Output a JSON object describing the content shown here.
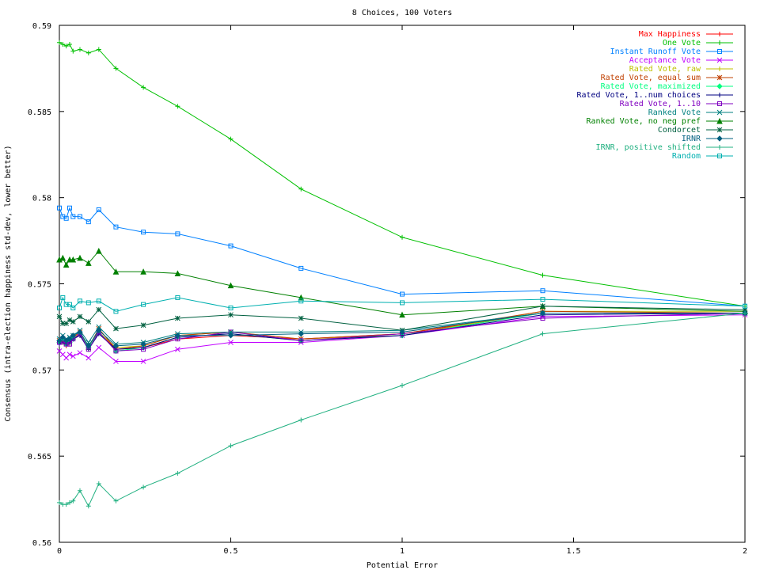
{
  "chart_data": {
    "type": "line",
    "title": "8 Choices, 100 Voters",
    "xlabel": "Potential Error",
    "ylabel": "Consensus (intra-election happiness std-dev, lower better)",
    "xlim": [
      0,
      2
    ],
    "ylim": [
      0.56,
      0.59
    ],
    "xticks": [
      0,
      0.5,
      1,
      1.5,
      2
    ],
    "xtick_labels": [
      "0",
      "0.5",
      "1",
      "1.5",
      "2"
    ],
    "yticks": [
      0.56,
      0.565,
      0.57,
      0.575,
      0.58,
      0.585,
      0.59
    ],
    "ytick_labels": [
      "0.56",
      "0.565",
      "0.57",
      "0.575",
      "0.58",
      "0.585",
      "0.59"
    ],
    "grid": false,
    "legend_position": "top-right",
    "x": [
      0,
      0.01,
      0.02,
      0.03,
      0.04,
      0.06,
      0.085,
      0.115,
      0.165,
      0.245,
      0.345,
      0.5,
      0.705,
      1.0,
      1.41,
      2.0
    ],
    "series": [
      {
        "name": "Max Happiness",
        "color": "#ff0000",
        "marker": "plus",
        "values": [
          0.5715,
          0.5716,
          0.5714,
          0.5715,
          0.5718,
          0.572,
          0.5714,
          0.5722,
          0.5712,
          0.5713,
          0.5718,
          0.572,
          0.5718,
          0.5721,
          0.5733,
          0.5733
        ]
      },
      {
        "name": "One Vote",
        "color": "#00c000",
        "marker": "plus",
        "values": [
          0.589,
          0.5889,
          0.5888,
          0.5889,
          0.5885,
          0.5886,
          0.5884,
          0.5886,
          0.5875,
          0.5864,
          0.5853,
          0.5834,
          0.5805,
          0.5777,
          0.5755,
          0.5737
        ]
      },
      {
        "name": "Instant Runoff Vote",
        "color": "#0080ff",
        "marker": "square",
        "values": [
          0.5794,
          0.5789,
          0.5788,
          0.5794,
          0.5789,
          0.5789,
          0.5786,
          0.5793,
          0.5783,
          0.578,
          0.5779,
          0.5772,
          0.5759,
          0.5744,
          0.5746,
          0.5737
        ]
      },
      {
        "name": "Acceptance Vote",
        "color": "#c000ff",
        "marker": "cross",
        "values": [
          0.5711,
          0.5709,
          0.5707,
          0.5709,
          0.5708,
          0.571,
          0.5707,
          0.5713,
          0.5705,
          0.5705,
          0.5712,
          0.5716,
          0.5716,
          0.572,
          0.5731,
          0.5732
        ]
      },
      {
        "name": "Rated Vote, raw",
        "color": "#c0c000",
        "marker": "plus",
        "values": [
          0.5716,
          0.5718,
          0.5716,
          0.5718,
          0.5719,
          0.5721,
          0.5712,
          0.5722,
          0.5713,
          0.5714,
          0.572,
          0.5722,
          0.5718,
          0.572,
          0.5734,
          0.5734
        ]
      },
      {
        "name": "Rated Vote, equal sum",
        "color": "#c04000",
        "marker": "star",
        "values": [
          0.5717,
          0.5717,
          0.5716,
          0.5717,
          0.5719,
          0.5722,
          0.5713,
          0.5724,
          0.5712,
          0.5714,
          0.572,
          0.5722,
          0.5718,
          0.5721,
          0.5734,
          0.5733
        ]
      },
      {
        "name": "Rated Vote, maximized",
        "color": "#00ff80",
        "marker": "diamond",
        "values": [
          0.5716,
          0.5718,
          0.5715,
          0.5716,
          0.5718,
          0.5721,
          0.5713,
          0.5722,
          0.5711,
          0.5713,
          0.5719,
          0.5721,
          0.5717,
          0.572,
          0.5733,
          0.5733
        ]
      },
      {
        "name": "Rated Vote, 1..num choices",
        "color": "#000080",
        "marker": "plus",
        "values": [
          0.5715,
          0.5716,
          0.5715,
          0.5716,
          0.5718,
          0.572,
          0.5712,
          0.5721,
          0.5712,
          0.5713,
          0.5719,
          0.5721,
          0.5717,
          0.572,
          0.5732,
          0.5733
        ]
      },
      {
        "name": "Rated Vote, 1..10",
        "color": "#8000c0",
        "marker": "square",
        "values": [
          0.5716,
          0.5717,
          0.5715,
          0.5715,
          0.5718,
          0.5721,
          0.5712,
          0.5722,
          0.5711,
          0.5712,
          0.5718,
          0.5722,
          0.5717,
          0.5721,
          0.573,
          0.5733
        ]
      },
      {
        "name": "Ranked Vote",
        "color": "#008080",
        "marker": "cross",
        "values": [
          0.5718,
          0.572,
          0.5718,
          0.5719,
          0.572,
          0.5723,
          0.5716,
          0.5725,
          0.5715,
          0.5716,
          0.5721,
          0.5722,
          0.5722,
          0.5723,
          0.5733,
          0.5733
        ]
      },
      {
        "name": "Ranked Vote, no neg pref",
        "color": "#008000",
        "marker": "triangle",
        "values": [
          0.5764,
          0.5765,
          0.5761,
          0.5764,
          0.5764,
          0.5765,
          0.5762,
          0.5769,
          0.5757,
          0.5757,
          0.5756,
          0.5749,
          0.5742,
          0.5732,
          0.5737,
          0.5734
        ]
      },
      {
        "name": "Condorcet",
        "color": "#006040",
        "marker": "star",
        "values": [
          0.5731,
          0.5727,
          0.5727,
          0.5729,
          0.5728,
          0.5731,
          0.5728,
          0.5735,
          0.5724,
          0.5726,
          0.573,
          0.5732,
          0.573,
          0.5723,
          0.5737,
          0.5735
        ]
      },
      {
        "name": "IRNR",
        "color": "#006080",
        "marker": "diamond",
        "values": [
          0.5717,
          0.5719,
          0.5717,
          0.5718,
          0.572,
          0.5722,
          0.5714,
          0.5723,
          0.5714,
          0.5715,
          0.572,
          0.572,
          0.5721,
          0.5722,
          0.5733,
          0.5733
        ]
      },
      {
        "name": "IRNR, positive shifted",
        "color": "#20b080",
        "marker": "plus",
        "values": [
          0.5623,
          0.5622,
          0.5622,
          0.5623,
          0.5624,
          0.563,
          0.5621,
          0.5634,
          0.5624,
          0.5632,
          0.564,
          0.5656,
          0.5671,
          0.5691,
          0.5721,
          0.5733
        ]
      },
      {
        "name": "Random",
        "color": "#00b0b0",
        "marker": "square",
        "values": [
          0.5736,
          0.5742,
          0.5738,
          0.5738,
          0.5736,
          0.574,
          0.5739,
          0.574,
          0.5734,
          0.5738,
          0.5742,
          0.5736,
          0.574,
          0.5739,
          0.5741,
          0.5737
        ]
      }
    ]
  }
}
